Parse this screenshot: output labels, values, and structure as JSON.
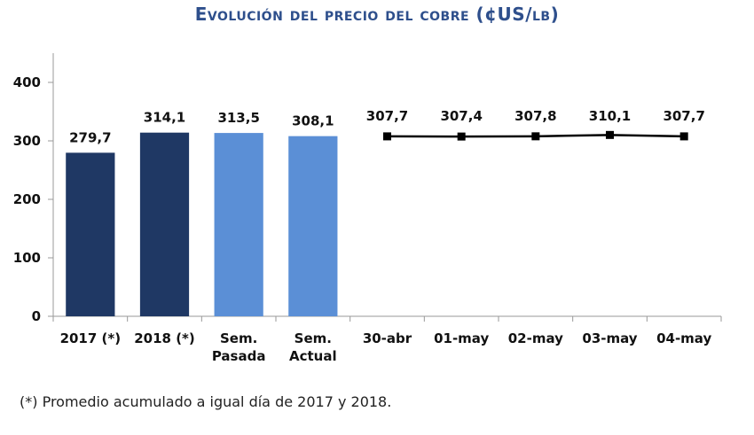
{
  "chart_data": {
    "type": "bar",
    "title": "Evolución del precio del cobre (¢US/lb)",
    "categories": [
      "2017 (*)",
      "2018 (*)",
      "Sem. Pasada",
      "Sem. Actual",
      "30-abr",
      "01-may",
      "02-may",
      "03-may",
      "04-may"
    ],
    "category_lines": [
      [
        "2017 (*)"
      ],
      [
        "2018 (*)"
      ],
      [
        "Sem.",
        "Pasada"
      ],
      [
        "Sem.",
        "Actual"
      ],
      [
        "30-abr"
      ],
      [
        "01-may"
      ],
      [
        "02-may"
      ],
      [
        "03-may"
      ],
      [
        "04-may"
      ]
    ],
    "bars": [
      {
        "category": "2017 (*)",
        "value": 279.7,
        "label": "279,7",
        "color": "#1f3864"
      },
      {
        "category": "2018 (*)",
        "value": 314.1,
        "label": "314,1",
        "color": "#1f3864"
      },
      {
        "category": "Sem. Pasada",
        "value": 313.5,
        "label": "313,5",
        "color": "#5b8fd6"
      },
      {
        "category": "Sem. Actual",
        "value": 308.1,
        "label": "308,1",
        "color": "#5b8fd6"
      }
    ],
    "series": [
      {
        "x": [
          "30-abr",
          "01-may",
          "02-may",
          "03-may",
          "04-may"
        ],
        "values": [
          307.7,
          307.4,
          307.8,
          310.1,
          307.7
        ],
        "labels": [
          "307,7",
          "307,4",
          "307,8",
          "310,1",
          "307,7"
        ],
        "color": "#000000"
      }
    ],
    "yticks": [
      0,
      100,
      200,
      300,
      400
    ],
    "ylim": [
      0,
      450
    ],
    "xlabel": "",
    "ylabel": "",
    "grid": false
  },
  "footnote": "(*) Promedio acumulado a igual día de 2017 y 2018."
}
